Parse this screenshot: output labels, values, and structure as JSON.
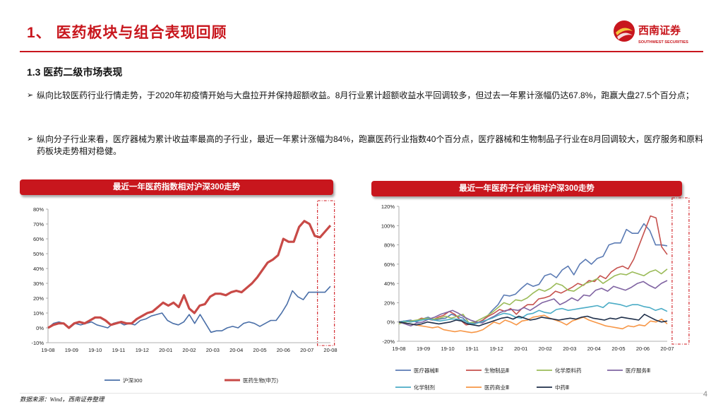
{
  "header": {
    "title": "1、 医药板块与组合表现回顾",
    "logo_text": "西南证券",
    "logo_subtext": "SOUTHWEST SECURITIES"
  },
  "section_title": "1.3 医药二级市场表现",
  "bullets": [
    "纵向比较医药行业行情走势，于2020年初疫情开始与大盘拉开并保持超额收益。8月行业累计超额收益水平回调较多，但过去一年累计涨幅仍达67.8%，跑赢大盘27.5个百分点；",
    "纵向分子行业来看，医疗器械为累计收益率最高的子行业，最近一年累计涨幅为84%，跑赢医药行业指数40个百分点，医疗器械和生物制品子行业在8月回调较大，医疗服务和原料药板块走势相对稳健。"
  ],
  "bullet_marker": "➢",
  "footer": {
    "source": "数据来源：Wind，西南证券整理",
    "page": "4"
  },
  "colors": {
    "brand": "#c8161d"
  },
  "chart_data": [
    {
      "type": "line",
      "title": "最近一年医药指数相对沪深300走势",
      "x_labels": [
        "19-08",
        "19-09",
        "19-10",
        "19-11",
        "19-12",
        "20-01",
        "20-02",
        "20-03",
        "20-04",
        "20-05",
        "20-06",
        "20-07",
        "20-08"
      ],
      "ylim": [
        -10,
        80
      ],
      "y_ticks": [
        -10,
        0,
        10,
        20,
        30,
        40,
        50,
        60,
        70,
        80
      ],
      "y_tick_labels": [
        "-10%",
        "0%",
        "10%",
        "20%",
        "30%",
        "40%",
        "50%",
        "60%",
        "70%",
        "80%"
      ],
      "highlight_range": [
        11.75,
        12.15
      ],
      "series": [
        {
          "name": "沪深300",
          "color": "#4a6fa8",
          "width": 1.6,
          "values": [
            0,
            3,
            4,
            3,
            0,
            3,
            2,
            3,
            4,
            2,
            1,
            0,
            3,
            4,
            2,
            3,
            2,
            5,
            6,
            8,
            9,
            10,
            5,
            3,
            2,
            4,
            9,
            3,
            9,
            3,
            -3,
            -2,
            -2,
            0,
            1,
            0,
            3,
            4,
            3,
            1,
            3,
            5,
            5,
            10,
            16,
            25,
            21,
            19,
            24,
            24,
            24,
            24,
            28
          ]
        },
        {
          "name": "医药生物(申万)",
          "color": "#c84a47",
          "width": 3.2,
          "values": [
            0,
            2,
            3,
            3,
            0,
            3,
            4,
            3,
            5,
            7,
            7,
            5,
            2,
            3,
            4,
            3,
            3,
            6,
            8,
            10,
            11,
            14,
            17,
            15,
            17,
            14,
            22,
            13,
            10,
            15,
            16,
            21,
            23,
            23,
            22,
            24,
            25,
            24,
            27,
            30,
            34,
            39,
            44,
            46,
            49,
            60,
            58,
            58,
            68,
            72,
            70,
            62,
            61,
            65,
            69
          ]
        }
      ]
    },
    {
      "type": "line",
      "title": "最近一年医药子行业相对沪深300走势",
      "x_labels": [
        "19-08",
        "19-09",
        "19-10",
        "19-11",
        "19-12",
        "20-01",
        "20-02",
        "20-03",
        "20-04",
        "20-05",
        "20-06",
        "20-07"
      ],
      "ylim": [
        -20,
        120
      ],
      "y_ticks": [
        -20,
        0,
        20,
        40,
        60,
        80,
        100,
        120
      ],
      "y_tick_labels": [
        "-20%",
        "0%",
        "20%",
        "40%",
        "60%",
        "80%",
        "100%",
        "120%"
      ],
      "highlight_range": [
        11.5,
        12.1
      ],
      "series": [
        {
          "name": "医疗器械Ⅲ",
          "color": "#5b7bb4",
          "width": 1.6,
          "values": [
            0,
            1,
            2,
            0,
            3,
            5,
            2,
            3,
            4,
            8,
            6,
            4,
            -2,
            -1,
            0,
            5,
            12,
            18,
            28,
            27,
            29,
            35,
            40,
            37,
            39,
            48,
            50,
            46,
            54,
            58,
            49,
            60,
            65,
            60,
            66,
            68,
            80,
            82,
            82,
            96,
            92,
            92,
            102,
            95,
            80,
            80,
            79
          ]
        },
        {
          "name": "生物制品Ⅲ",
          "color": "#c6514d",
          "width": 1.6,
          "values": [
            0,
            1,
            0,
            1,
            4,
            3,
            2,
            5,
            7,
            11,
            8,
            2,
            -3,
            -2,
            -1,
            2,
            6,
            9,
            13,
            11,
            14,
            8,
            14,
            18,
            18,
            24,
            25,
            27,
            32,
            30,
            33,
            36,
            40,
            38,
            43,
            42,
            48,
            45,
            52,
            56,
            58,
            55,
            65,
            80,
            95,
            110,
            108,
            78,
            70
          ]
        },
        {
          "name": "化学原料药",
          "color": "#9bbb59",
          "width": 1.6,
          "values": [
            -2,
            0,
            1,
            2,
            3,
            4,
            3,
            4,
            6,
            4,
            6,
            8,
            -1,
            0,
            3,
            6,
            10,
            15,
            20,
            18,
            23,
            22,
            25,
            30,
            34,
            32,
            35,
            40,
            38,
            33,
            32,
            36,
            40,
            42,
            45,
            40,
            44,
            48,
            50,
            49,
            52,
            50,
            48,
            52,
            54,
            50,
            55
          ]
        },
        {
          "name": "医疗服务Ⅲ",
          "color": "#8064a2",
          "width": 1.6,
          "values": [
            0,
            -2,
            -4,
            -1,
            0,
            3,
            5,
            8,
            10,
            12,
            9,
            5,
            2,
            0,
            -1,
            3,
            6,
            10,
            12,
            13,
            12,
            15,
            12,
            16,
            20,
            22,
            24,
            18,
            21,
            25,
            22,
            28,
            27,
            33,
            35,
            32,
            37,
            35,
            33,
            36,
            40,
            42,
            38,
            35,
            40,
            43
          ]
        },
        {
          "name": "化学制剂",
          "color": "#4bacc6",
          "width": 1.6,
          "values": [
            0,
            1,
            0,
            1,
            2,
            3,
            2,
            1,
            2,
            3,
            3,
            2,
            -1,
            -2,
            0,
            2,
            4,
            7,
            9,
            8,
            5,
            4,
            8,
            9,
            12,
            10,
            9,
            13,
            14,
            12,
            13,
            14,
            15,
            16,
            17,
            15,
            20,
            19,
            18,
            16,
            18,
            18,
            16,
            15,
            12,
            14,
            11
          ]
        },
        {
          "name": "医药商业Ⅲ",
          "color": "#f79646",
          "width": 1.6,
          "values": [
            0,
            -1,
            -2,
            -3,
            -4,
            -5,
            -6,
            -5,
            -8,
            -9,
            -10,
            -9,
            -10,
            -11,
            -10,
            -8,
            -4,
            0,
            -2,
            2,
            0,
            -3,
            1,
            2,
            5,
            6,
            7,
            4,
            2,
            0,
            -3,
            1,
            3,
            5,
            2,
            0,
            -2,
            -4,
            -5,
            -6,
            -7,
            -4,
            -5,
            -3,
            -4,
            1,
            0,
            3,
            -2
          ]
        },
        {
          "name": "中药Ⅲ",
          "color": "#1f2f4a",
          "width": 1.6,
          "values": [
            0,
            -1,
            -2,
            -3,
            -2,
            0,
            -1,
            -2,
            -1,
            0,
            2,
            1,
            -2,
            -3,
            -4,
            -2,
            0,
            2,
            4,
            5,
            3,
            6,
            4,
            2,
            3,
            5,
            4,
            3,
            2,
            3,
            4,
            3,
            5,
            6,
            4,
            3,
            2,
            4,
            3,
            5,
            4,
            3,
            2,
            8,
            5,
            2,
            0,
            1
          ]
        }
      ]
    }
  ]
}
